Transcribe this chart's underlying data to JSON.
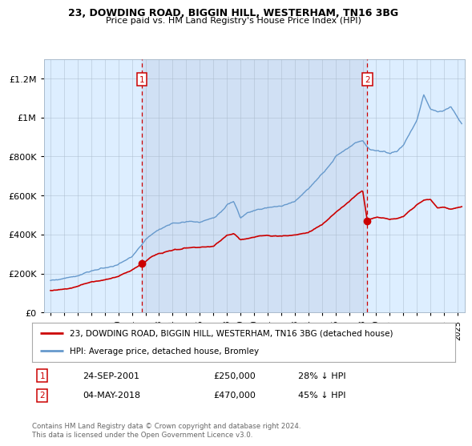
{
  "title": "23, DOWDING ROAD, BIGGIN HILL, WESTERHAM, TN16 3BG",
  "subtitle": "Price paid vs. HM Land Registry's House Price Index (HPI)",
  "legend_line1": "23, DOWDING ROAD, BIGGIN HILL, WESTERHAM, TN16 3BG (detached house)",
  "legend_line2": "HPI: Average price, detached house, Bromley",
  "annotation1_label": "1",
  "annotation1_date": "24-SEP-2001",
  "annotation1_price": "£250,000",
  "annotation1_hpi": "28% ↓ HPI",
  "annotation2_label": "2",
  "annotation2_date": "04-MAY-2018",
  "annotation2_price": "£470,000",
  "annotation2_hpi": "45% ↓ HPI",
  "footer": "Contains HM Land Registry data © Crown copyright and database right 2024.\nThis data is licensed under the Open Government Licence v3.0.",
  "fig_bg_color": "#ffffff",
  "plot_bg_color": "#ddeeff",
  "red_line_color": "#cc0000",
  "blue_line_color": "#6699cc",
  "dashed_line_color": "#cc0000",
  "sale1_x": 2001.73,
  "sale1_y": 250000,
  "sale2_x": 2018.34,
  "sale2_y": 470000,
  "ylim": [
    0,
    1300000
  ],
  "xlim_start": 1994.5,
  "xlim_end": 2025.5,
  "yticks": [
    0,
    200000,
    400000,
    600000,
    800000,
    1000000,
    1200000
  ],
  "ytick_labels": [
    "£0",
    "£200K",
    "£400K",
    "£600K",
    "£800K",
    "£1M",
    "£1.2M"
  ],
  "xticks": [
    1995,
    1996,
    1997,
    1998,
    1999,
    2000,
    2001,
    2002,
    2003,
    2004,
    2005,
    2006,
    2007,
    2008,
    2009,
    2010,
    2011,
    2012,
    2013,
    2014,
    2015,
    2016,
    2017,
    2018,
    2019,
    2020,
    2021,
    2022,
    2023,
    2024,
    2025
  ]
}
